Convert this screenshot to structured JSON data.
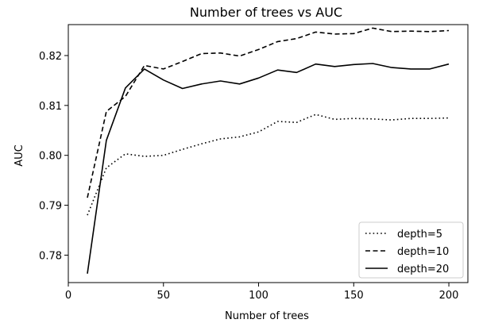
{
  "chart_data": {
    "type": "line",
    "title": "Number of trees vs AUC",
    "xlabel": "Number of trees",
    "ylabel": "AUC",
    "xlim": [
      0,
      210
    ],
    "ylim": [
      0.7745,
      0.8262
    ],
    "xticks": [
      0,
      50,
      100,
      150,
      200
    ],
    "xtick_labels": [
      "0",
      "50",
      "100",
      "150",
      "200"
    ],
    "yticks": [
      0.78,
      0.79,
      0.8,
      0.81,
      0.82
    ],
    "ytick_labels": [
      "0.78",
      "0.79",
      "0.80",
      "0.81",
      "0.82"
    ],
    "grid": false,
    "legend_position": "lower-right",
    "x": [
      10,
      20,
      30,
      40,
      50,
      60,
      70,
      80,
      90,
      100,
      110,
      120,
      130,
      140,
      150,
      160,
      170,
      180,
      190,
      200
    ],
    "series": [
      {
        "name": "depth=5",
        "line_style": "dotted",
        "values": [
          0.788,
          0.7975,
          0.8003,
          0.7998,
          0.8,
          0.8012,
          0.8023,
          0.8033,
          0.8037,
          0.8047,
          0.8068,
          0.8066,
          0.8082,
          0.8072,
          0.8074,
          0.8073,
          0.8071,
          0.8074,
          0.8074,
          0.8075
        ]
      },
      {
        "name": "depth=10",
        "line_style": "dashed",
        "values": [
          0.7915,
          0.8088,
          0.8118,
          0.818,
          0.8173,
          0.8188,
          0.8204,
          0.8205,
          0.8199,
          0.8212,
          0.8228,
          0.8234,
          0.8247,
          0.8243,
          0.8244,
          0.8255,
          0.8248,
          0.8249,
          0.8248,
          0.825
        ]
      },
      {
        "name": "depth=20",
        "line_style": "solid",
        "values": [
          0.7763,
          0.803,
          0.8135,
          0.8173,
          0.8151,
          0.8134,
          0.8143,
          0.8149,
          0.8143,
          0.8155,
          0.8171,
          0.8166,
          0.8183,
          0.8178,
          0.8182,
          0.8184,
          0.8176,
          0.8173,
          0.8173,
          0.8183
        ]
      }
    ]
  }
}
